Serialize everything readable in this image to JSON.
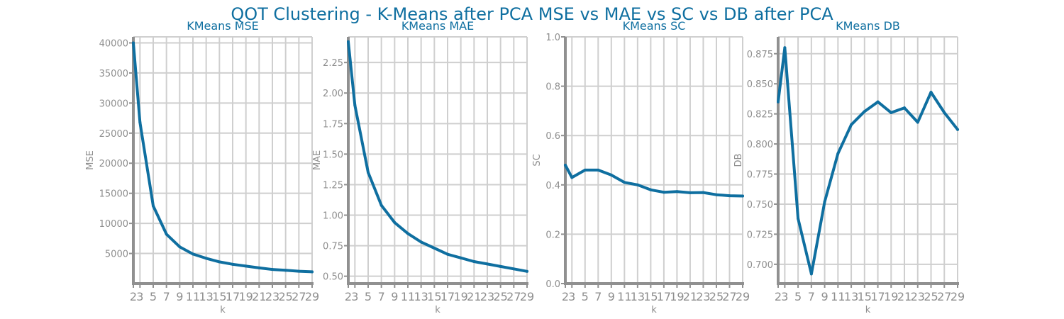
{
  "chart_data": {
    "title": "QOT Clustering - K-Means after PCA MSE vs MAE vs SC vs DB after PCA",
    "panels": [
      {
        "type": "line",
        "title": "KMeans MSE",
        "xlabel": "k",
        "ylabel": "MSE",
        "x": [
          2,
          3,
          5,
          7,
          9,
          11,
          13,
          15,
          17,
          19,
          21,
          23,
          25,
          27,
          29
        ],
        "values": [
          40000,
          26800,
          12900,
          8200,
          6100,
          4900,
          4200,
          3600,
          3200,
          2900,
          2600,
          2350,
          2200,
          2050,
          1950
        ],
        "yticks": [
          5000,
          10000,
          15000,
          20000,
          25000,
          30000,
          35000,
          40000
        ],
        "yticklabels": [
          "5000",
          "10000",
          "15000",
          "20000",
          "25000",
          "30000",
          "35000",
          "40000"
        ],
        "xticklabels": [
          "2",
          "3",
          "5",
          "7",
          "9",
          "11",
          "13",
          "15",
          "17",
          "19",
          "21",
          "23",
          "25",
          "27",
          "29"
        ],
        "ylim": [
          0,
          41000
        ],
        "xlim": [
          2,
          29
        ],
        "grid": true
      },
      {
        "type": "line",
        "title": "KMeans MAE",
        "xlabel": "k",
        "ylabel": "MAE",
        "x": [
          2,
          3,
          5,
          7,
          9,
          11,
          13,
          15,
          17,
          19,
          21,
          23,
          25,
          27,
          29
        ],
        "values": [
          2.42,
          1.9,
          1.35,
          1.08,
          0.94,
          0.85,
          0.78,
          0.73,
          0.68,
          0.65,
          0.62,
          0.6,
          0.58,
          0.56,
          0.54
        ],
        "yticks": [
          0.5,
          0.75,
          1.0,
          1.25,
          1.5,
          1.75,
          2.0,
          2.25
        ],
        "yticklabels": [
          "0.50",
          "0.75",
          "1.00",
          "1.25",
          "1.50",
          "1.75",
          "2.00",
          "2.25"
        ],
        "xticklabels": [
          "2",
          "3",
          "5",
          "7",
          "9",
          "11",
          "13",
          "15",
          "17",
          "19",
          "21",
          "23",
          "25",
          "27",
          "29"
        ],
        "ylim": [
          0.44,
          2.46
        ],
        "xlim": [
          2,
          29
        ],
        "grid": true
      },
      {
        "type": "line",
        "title": "KMeans SC",
        "xlabel": "k",
        "ylabel": "SC",
        "x": [
          2,
          3,
          5,
          7,
          9,
          11,
          13,
          15,
          17,
          19,
          21,
          23,
          25,
          27,
          29
        ],
        "values": [
          0.48,
          0.43,
          0.46,
          0.46,
          0.44,
          0.41,
          0.4,
          0.38,
          0.37,
          0.373,
          0.368,
          0.369,
          0.36,
          0.356,
          0.355
        ],
        "yticks": [
          0.0,
          0.2,
          0.4,
          0.6,
          0.8,
          1.0
        ],
        "yticklabels": [
          "0.0",
          "0.2",
          "0.4",
          "0.6",
          "0.8",
          "1.0"
        ],
        "xticklabels": [
          "2",
          "3",
          "5",
          "7",
          "9",
          "11",
          "13",
          "15",
          "17",
          "19",
          "21",
          "23",
          "25",
          "27",
          "29"
        ],
        "ylim": [
          0,
          1
        ],
        "xlim": [
          2,
          29
        ],
        "grid": true
      },
      {
        "type": "line",
        "title": "KMeans DB",
        "xlabel": "k",
        "ylabel": "DB",
        "x": [
          2,
          3,
          5,
          7,
          9,
          11,
          13,
          15,
          17,
          19,
          21,
          23,
          25,
          27,
          29
        ],
        "values": [
          0.835,
          0.88,
          0.738,
          0.692,
          0.752,
          0.792,
          0.816,
          0.827,
          0.835,
          0.826,
          0.83,
          0.818,
          0.843,
          0.826,
          0.812
        ],
        "yticks": [
          0.7,
          0.725,
          0.75,
          0.775,
          0.8,
          0.825,
          0.85,
          0.875
        ],
        "yticklabels": [
          "0.700",
          "0.725",
          "0.750",
          "0.775",
          "0.800",
          "0.825",
          "0.850",
          "0.875"
        ],
        "xticklabels": [
          "2",
          "3",
          "5",
          "7",
          "9",
          "11",
          "13",
          "15",
          "17",
          "19",
          "21",
          "23",
          "25",
          "27",
          "29"
        ],
        "ylim": [
          0.684,
          0.889
        ],
        "xlim": [
          2,
          29
        ],
        "grid": true
      }
    ]
  }
}
